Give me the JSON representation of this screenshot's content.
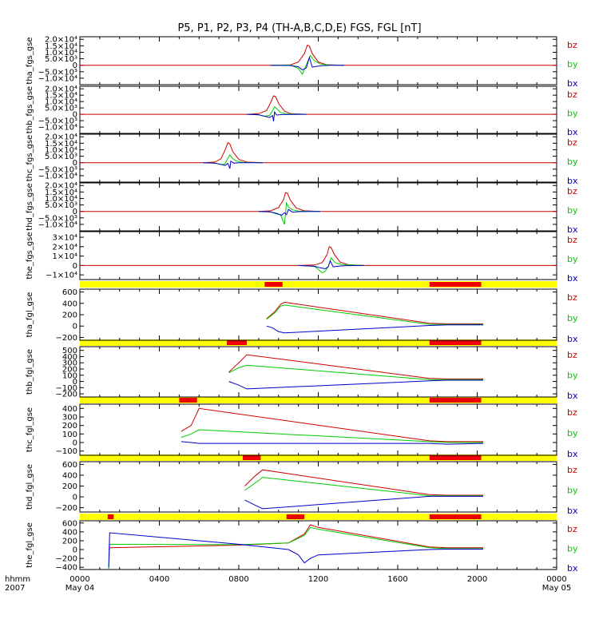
{
  "title": "P5, P1, P2, P3, P4 (TH-A,B,C,D,E) FGS, FGL [nT]",
  "colors": {
    "bx": "#0000cc",
    "by": "#00cc00",
    "bz": "#cc0000",
    "bar_bg": "#ffff00",
    "bar_mark": "#ee0000"
  },
  "chart_data": {
    "type": "line",
    "x_label_line1": "hhmm",
    "x_label_line2": "2007",
    "x_ticks": [
      "0000",
      "0400",
      "0800",
      "1200",
      "1600",
      "2000",
      "0000"
    ],
    "x_dates": [
      "May 04",
      "May 05"
    ],
    "xlim_hours": [
      0,
      24
    ],
    "legend": [
      "bz",
      "by",
      "bx"
    ],
    "panels": [
      {
        "ylabel": "tha_fgs_gse",
        "ylim": [
          -15000,
          22000
        ],
        "ytick_labels": [
          "2.0×10⁴",
          "1.5×10⁴",
          "1.0×10⁴",
          "5.0×10³",
          "0",
          "−5.0×10³",
          "−1.0×10⁴"
        ],
        "ytick_values": [
          20000,
          15000,
          10000,
          5000,
          0,
          -5000,
          -10000
        ],
        "series": [
          {
            "name": "bz",
            "x": [
              0,
              9.6,
              10.6,
              11.0,
              11.3,
              11.45,
              11.55,
              11.7,
              12.0,
              12.4,
              13.3,
              24
            ],
            "y": [
              0,
              0,
              300,
              2500,
              9000,
              15500,
              15000,
              9000,
              2500,
              400,
              0,
              0
            ]
          },
          {
            "name": "by",
            "x": [
              9.6,
              10.6,
              11.0,
              11.2,
              11.35,
              11.5,
              11.6,
              11.8,
              12.1,
              12.5,
              13.3
            ],
            "y": [
              0,
              200,
              -2500,
              -7000,
              -1500,
              4000,
              7500,
              3500,
              900,
              200,
              0
            ]
          },
          {
            "name": "bx",
            "x": [
              9.6,
              10.6,
              11.0,
              11.2,
              11.4,
              11.55,
              11.7,
              11.9,
              12.2,
              12.6,
              13.3
            ],
            "y": [
              0,
              -200,
              -1200,
              -3500,
              -2000,
              6000,
              -1500,
              -900,
              -300,
              -100,
              0
            ]
          }
        ]
      },
      {
        "ylabel": "thb_fgs_gse",
        "ylim": [
          -15000,
          22000
        ],
        "ytick_labels": [
          "2.0×10⁴",
          "1.5×10⁴",
          "1.0×10⁴",
          "5.0×10³",
          "0",
          "−5.0×10³",
          "−1.0×10⁴"
        ],
        "ytick_values": [
          20000,
          15000,
          10000,
          5000,
          0,
          -5000,
          -10000
        ],
        "series": [
          {
            "name": "bz",
            "x": [
              0,
              8.4,
              9.0,
              9.4,
              9.6,
              9.75,
              9.85,
              10.0,
              10.3,
              10.6,
              11.4,
              24
            ],
            "y": [
              0,
              0,
              500,
              3000,
              9000,
              14500,
              14000,
              8500,
              2500,
              500,
              0,
              0
            ]
          },
          {
            "name": "by",
            "x": [
              8.4,
              9.0,
              9.3,
              9.55,
              9.7,
              9.8,
              9.9,
              10.1,
              10.4,
              11.4
            ],
            "y": [
              0,
              -300,
              -1500,
              -800,
              3000,
              6000,
              4500,
              1500,
              300,
              0
            ]
          },
          {
            "name": "bx",
            "x": [
              8.4,
              9.0,
              9.3,
              9.55,
              9.7,
              9.75,
              9.8,
              9.9,
              10.2,
              11.4
            ],
            "y": [
              0,
              -400,
              -1500,
              -2500,
              -1000,
              -5500,
              1800,
              -600,
              -200,
              0
            ]
          }
        ]
      },
      {
        "ylabel": "thc_fgs_gse",
        "ylim": [
          -15000,
          22000
        ],
        "ytick_labels": [
          "2.0×10⁴",
          "1.5×10⁴",
          "1.0×10⁴",
          "5.0×10³",
          "0",
          "−5.0×10³",
          "−1.0×10⁴"
        ],
        "ytick_values": [
          20000,
          15000,
          10000,
          5000,
          0,
          -5000,
          -10000
        ],
        "series": [
          {
            "name": "bz",
            "x": [
              0,
              6.2,
              6.8,
              7.1,
              7.3,
              7.45,
              7.55,
              7.7,
              8.0,
              8.4,
              9.2,
              24
            ],
            "y": [
              0,
              0,
              500,
              3000,
              9500,
              15500,
              14500,
              8500,
              2500,
              500,
              0,
              0
            ]
          },
          {
            "name": "by",
            "x": [
              6.2,
              6.8,
              7.1,
              7.3,
              7.45,
              7.55,
              7.7,
              7.9,
              8.2,
              9.2
            ],
            "y": [
              0,
              -300,
              -1500,
              -1000,
              3500,
              6000,
              3000,
              1200,
              300,
              0
            ]
          },
          {
            "name": "bx",
            "x": [
              6.2,
              6.8,
              7.1,
              7.3,
              7.45,
              7.55,
              7.6,
              7.75,
              8.0,
              9.2
            ],
            "y": [
              0,
              -300,
              -1300,
              -2200,
              -500,
              -4500,
              1200,
              -400,
              -100,
              0
            ]
          }
        ]
      },
      {
        "ylabel": "thd_fgs_gse",
        "ylim": [
          -15000,
          22000
        ],
        "ytick_labels": [
          "2.0×10⁴",
          "1.5×10⁴",
          "1.0×10⁴",
          "5.0×10³",
          "0",
          "−5.0×10³",
          "−1.0×10⁴"
        ],
        "ytick_values": [
          20000,
          15000,
          10000,
          5000,
          0,
          -5000,
          -10000
        ],
        "series": [
          {
            "name": "bz",
            "x": [
              0,
              9.0,
              9.6,
              10.0,
              10.25,
              10.35,
              10.45,
              10.6,
              10.9,
              11.3,
              12.1,
              24
            ],
            "y": [
              0,
              0,
              500,
              3000,
              9000,
              14500,
              14000,
              8500,
              2500,
              500,
              0,
              0
            ]
          },
          {
            "name": "by",
            "x": [
              9.0,
              9.6,
              9.9,
              10.1,
              10.3,
              10.4,
              10.5,
              10.7,
              11.0,
              12.1
            ],
            "y": [
              0,
              -400,
              -2000,
              -2500,
              -10000,
              6500,
              3500,
              1200,
              300,
              0
            ]
          },
          {
            "name": "bx",
            "x": [
              9.0,
              9.6,
              9.9,
              10.15,
              10.3,
              10.4,
              10.5,
              10.7,
              11.0,
              12.1
            ],
            "y": [
              0,
              -400,
              -1500,
              -3000,
              -1000,
              -2500,
              1500,
              -600,
              -200,
              0
            ]
          }
        ]
      },
      {
        "ylabel": "the_fgs_gse",
        "ylim": [
          -15000,
          36000
        ],
        "ytick_labels": [
          "3×10⁴",
          "2×10⁴",
          "1×10⁴",
          "0",
          "−1×10⁴"
        ],
        "ytick_values": [
          30000,
          20000,
          10000,
          0,
          -10000
        ],
        "series": [
          {
            "name": "bz",
            "x": [
              0,
              11.0,
              11.8,
              12.2,
              12.45,
              12.55,
              12.65,
              12.8,
              13.1,
              13.5,
              14.3,
              24
            ],
            "y": [
              0,
              0,
              500,
              3000,
              12000,
              20000,
              19000,
              12000,
              3500,
              800,
              0,
              0
            ]
          },
          {
            "name": "by",
            "x": [
              11.0,
              11.8,
              12.0,
              12.2,
              12.35,
              12.5,
              12.65,
              12.85,
              13.2,
              14.3
            ],
            "y": [
              0,
              -1000,
              -4000,
              -8000,
              -6000,
              -1500,
              8000,
              3000,
              800,
              0
            ]
          },
          {
            "name": "bx",
            "x": [
              11.0,
              11.8,
              12.1,
              12.35,
              12.5,
              12.6,
              12.75,
              13.0,
              13.4,
              14.3
            ],
            "y": [
              0,
              -800,
              -2500,
              -3500,
              -1500,
              5000,
              -1500,
              -800,
              -200,
              0
            ]
          }
        ]
      },
      {
        "ylabel": "tha_fgl_gse",
        "ylim": [
          -250,
          650
        ],
        "ytick_labels": [
          "600",
          "400",
          "200",
          "0",
          "−200"
        ],
        "ytick_values": [
          600,
          400,
          200,
          0,
          -200
        ],
        "bar_segments_hours": [
          [
            9.3,
            10.2
          ],
          [
            17.6,
            20.2
          ]
        ],
        "series": [
          {
            "name": "bz",
            "x": [
              9.4,
              9.8,
              10.1,
              10.3,
              17.6,
              18.5,
              20.3
            ],
            "y": [
              130,
              250,
              380,
              420,
              50,
              40,
              40
            ]
          },
          {
            "name": "by",
            "x": [
              9.4,
              9.8,
              10.1,
              10.3,
              17.6,
              18.5,
              20.3
            ],
            "y": [
              120,
              230,
              350,
              370,
              30,
              30,
              30
            ]
          },
          {
            "name": "bx",
            "x": [
              9.4,
              9.7,
              10.0,
              10.3,
              17.6,
              18.5,
              20.3
            ],
            "y": [
              0,
              -30,
              -100,
              -120,
              10,
              20,
              20
            ]
          }
        ]
      },
      {
        "ylabel": "thb_fgl_gse",
        "ylim": [
          -250,
          560
        ],
        "ytick_labels": [
          "500",
          "400",
          "300",
          "200",
          "100",
          "0",
          "−100",
          "−200"
        ],
        "ytick_values": [
          500,
          400,
          300,
          200,
          100,
          0,
          -100,
          -200
        ],
        "bar_segments_hours": [
          [
            7.4,
            8.4
          ],
          [
            17.6,
            20.2
          ]
        ],
        "series": [
          {
            "name": "bz",
            "x": [
              7.5,
              8.0,
              8.4,
              17.6,
              18.5,
              20.3
            ],
            "y": [
              150,
              300,
              430,
              50,
              40,
              40
            ]
          },
          {
            "name": "by",
            "x": [
              7.5,
              8.0,
              8.4,
              17.6,
              18.5,
              20.3
            ],
            "y": [
              140,
              220,
              260,
              30,
              30,
              30
            ]
          },
          {
            "name": "bx",
            "x": [
              7.5,
              8.0,
              8.4,
              17.6,
              18.5,
              20.3
            ],
            "y": [
              0,
              -60,
              -120,
              10,
              20,
              20
            ]
          }
        ]
      },
      {
        "ylabel": "thc_fgl_gse",
        "ylim": [
          -150,
          450
        ],
        "ytick_labels": [
          "400",
          "300",
          "200",
          "100",
          "0",
          "−100"
        ],
        "ytick_values": [
          400,
          300,
          200,
          100,
          0,
          -100
        ],
        "bar_segments_hours": [
          [
            5.0,
            5.9
          ],
          [
            17.6,
            20.2
          ]
        ],
        "series": [
          {
            "name": "bz",
            "x": [
              5.1,
              5.6,
              6.0,
              17.6,
              18.5,
              20.3
            ],
            "y": [
              130,
              200,
              400,
              20,
              10,
              10
            ]
          },
          {
            "name": "by",
            "x": [
              5.1,
              5.6,
              6.0,
              17.6,
              18.5,
              20.3
            ],
            "y": [
              60,
              100,
              150,
              10,
              0,
              0
            ]
          },
          {
            "name": "bx",
            "x": [
              5.1,
              5.6,
              6.0,
              17.6,
              18.5,
              20.3
            ],
            "y": [
              10,
              0,
              -10,
              -10,
              -20,
              -10
            ]
          }
        ]
      },
      {
        "ylabel": "thd_fgl_gse",
        "ylim": [
          -280,
          650
        ],
        "ytick_labels": [
          "600",
          "400",
          "200",
          "0",
          "−200"
        ],
        "ytick_values": [
          600,
          400,
          200,
          0,
          -200
        ],
        "bar_segments_hours": [
          [
            8.2,
            9.1
          ],
          [
            17.6,
            20.2
          ]
        ],
        "series": [
          {
            "name": "bz",
            "x": [
              8.3,
              8.8,
              9.2,
              17.6,
              18.5,
              20.3
            ],
            "y": [
              200,
              380,
              500,
              40,
              30,
              30
            ]
          },
          {
            "name": "by",
            "x": [
              8.3,
              8.8,
              9.2,
              17.6,
              18.5,
              20.3
            ],
            "y": [
              120,
              250,
              360,
              20,
              20,
              20
            ]
          },
          {
            "name": "bx",
            "x": [
              8.3,
              8.8,
              9.2,
              17.6,
              18.5,
              20.3
            ],
            "y": [
              -60,
              -150,
              -220,
              10,
              10,
              10
            ]
          }
        ]
      },
      {
        "ylabel": "the_fgl_gse",
        "ylim": [
          -450,
          650
        ],
        "ytick_labels": [
          "600",
          "400",
          "200",
          "0",
          "−200",
          "−400"
        ],
        "ytick_values": [
          600,
          400,
          200,
          0,
          -200,
          -400
        ],
        "bar_segments_hours": [
          [
            1.4,
            1.7
          ],
          [
            10.4,
            11.3
          ],
          [
            17.6,
            20.2
          ]
        ],
        "series": [
          {
            "name": "bz",
            "x": [
              1.45,
              1.5,
              8.0,
              10.5,
              11.3,
              11.6,
              12.0,
              17.6,
              18.5,
              20.3
            ],
            "y": [
              0,
              40,
              100,
              150,
              350,
              560,
              500,
              60,
              40,
              40
            ]
          },
          {
            "name": "by",
            "x": [
              1.45,
              1.5,
              8.0,
              10.5,
              11.3,
              11.6,
              12.0,
              17.6,
              18.5,
              20.3
            ],
            "y": [
              -450,
              120,
              110,
              150,
              320,
              500,
              460,
              40,
              20,
              20
            ]
          },
          {
            "name": "bx",
            "x": [
              1.45,
              1.5,
              8.0,
              10.5,
              11.0,
              11.3,
              11.6,
              12.0,
              17.6,
              18.5,
              20.3
            ],
            "y": [
              -400,
              380,
              120,
              0,
              -120,
              -300,
              -200,
              -120,
              0,
              10,
              10
            ]
          }
        ]
      }
    ]
  }
}
